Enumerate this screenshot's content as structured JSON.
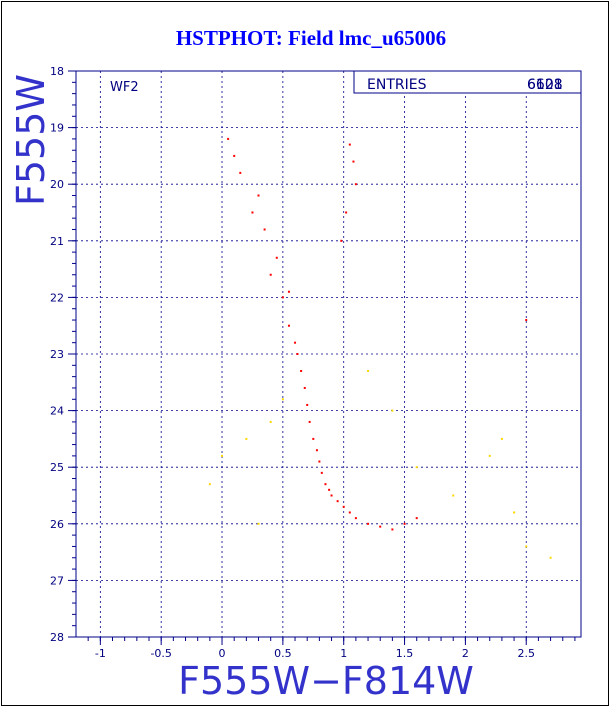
{
  "chart_data": {
    "type": "scatter",
    "title": "HSTPHOT: Field lmc_u65006",
    "xlabel": "F555W−F814W",
    "ylabel": "F555W",
    "xlim": [
      -1.2,
      2.95
    ],
    "ylim": [
      28,
      18
    ],
    "y_inverted": true,
    "x_ticks": [
      "-1",
      "-0.5",
      "0",
      "0.5",
      "1",
      "1.5",
      "2",
      "2.5"
    ],
    "y_ticks": [
      "18",
      "19",
      "20",
      "21",
      "22",
      "23",
      "24",
      "25",
      "26",
      "27",
      "28"
    ],
    "x_tick_values": [
      -1,
      -0.5,
      0,
      0.5,
      1,
      1.5,
      2,
      2.5
    ],
    "y_tick_values": [
      18,
      19,
      20,
      21,
      22,
      23,
      24,
      25,
      26,
      27,
      28
    ],
    "grid": true,
    "panel_label": "WF2",
    "stats_box": {
      "label": "ENTRIES",
      "value_overprinted": [
        "6128",
        "6601"
      ]
    },
    "colors": {
      "frame": "#00008b",
      "title": "#0000ff",
      "label": "#3333cc",
      "main_sequence": "#ff0000",
      "secondary_points": "#ffd700"
    },
    "series": [
      {
        "color": "#ff0000",
        "x": [
          0.5,
          0.55,
          0.6,
          0.62,
          0.65,
          0.68,
          0.7,
          0.72,
          0.75,
          0.78,
          0.8,
          0.82,
          0.85,
          0.88,
          0.9,
          0.95,
          1.0,
          1.05,
          1.1,
          1.2,
          1.3,
          1.4,
          1.5,
          1.6,
          1.05,
          1.08,
          1.1,
          1.02,
          0.98,
          0.3,
          0.25,
          0.35,
          0.45,
          0.4,
          0.55,
          0.05,
          0.1,
          0.15,
          2.5
        ],
        "y": [
          22.0,
          22.5,
          22.8,
          23.0,
          23.3,
          23.6,
          23.9,
          24.2,
          24.5,
          24.7,
          24.9,
          25.1,
          25.3,
          25.4,
          25.5,
          25.6,
          25.7,
          25.8,
          25.9,
          26.0,
          26.05,
          26.1,
          26.0,
          25.9,
          19.3,
          19.6,
          20.0,
          20.5,
          21.0,
          20.2,
          20.5,
          20.8,
          21.3,
          21.6,
          21.9,
          19.2,
          19.5,
          19.8,
          22.4
        ]
      },
      {
        "color": "#ffd700",
        "x": [
          -0.1,
          0.2,
          0.3,
          0.4,
          1.2,
          1.4,
          1.6,
          1.9,
          2.2,
          2.3,
          2.5,
          0.0,
          0.5,
          2.4,
          2.7
        ],
        "y": [
          25.3,
          24.5,
          26.0,
          24.2,
          23.3,
          24.0,
          25.0,
          25.5,
          24.8,
          24.5,
          26.4,
          24.8,
          23.8,
          25.8,
          26.6
        ]
      }
    ]
  }
}
